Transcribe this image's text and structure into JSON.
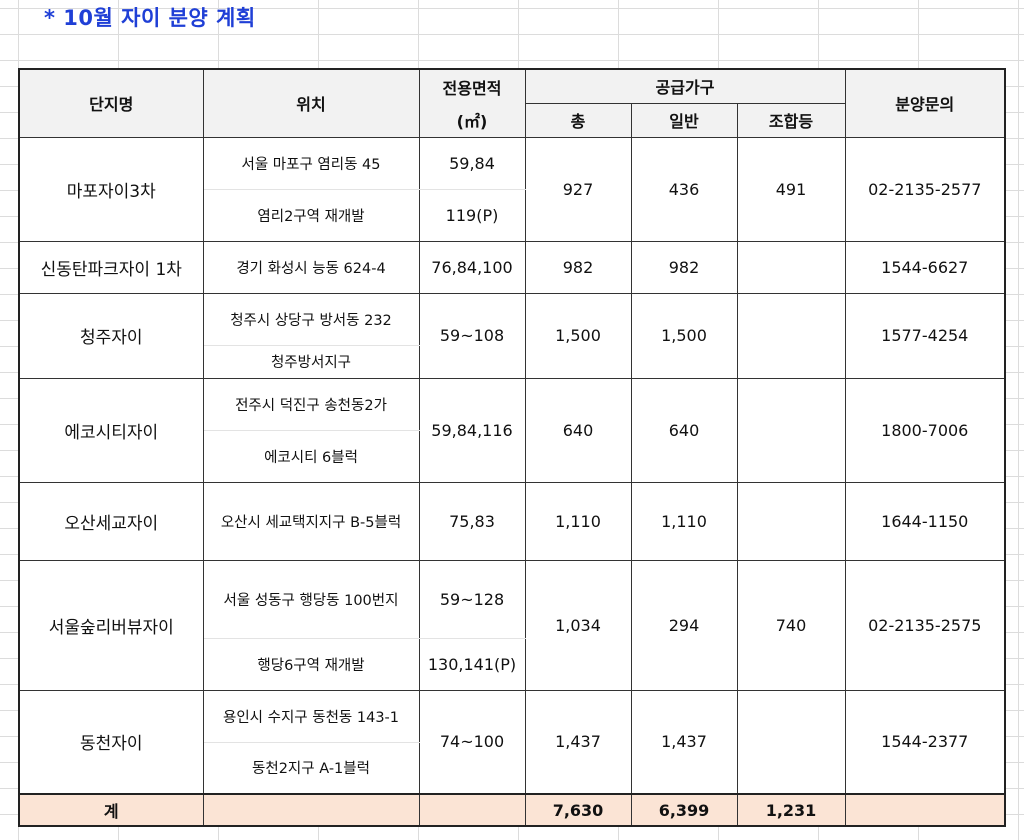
{
  "title": "* 10월 자이 분양 계획",
  "headers": {
    "name": "단지명",
    "location": "위치",
    "area": "전용면적",
    "area_unit": "(㎡)",
    "supply": "공급가구",
    "total": "총",
    "general": "일반",
    "union": "조합등",
    "inquiry": "분양문의"
  },
  "rows": [
    {
      "name": "마포자이3차",
      "location": [
        "서울 마포구 염리동 45",
        "염리2구역 재개발"
      ],
      "area": [
        "59,84",
        "119(P)"
      ],
      "total": "927",
      "general": "436",
      "union": "491",
      "inquiry": "02-2135-2577"
    },
    {
      "name": "신동탄파크자이 1차",
      "location": [
        "경기 화성시 능동 624-4"
      ],
      "area": [
        "76,84,100"
      ],
      "total": "982",
      "general": "982",
      "union": "",
      "inquiry": "1544-6627"
    },
    {
      "name": "청주자이",
      "location": [
        "청주시 상당구 방서동 232",
        "청주방서지구"
      ],
      "area": [
        "59~108"
      ],
      "total": "1,500",
      "general": "1,500",
      "union": "",
      "inquiry": "1577-4254"
    },
    {
      "name": "에코시티자이",
      "location": [
        "전주시 덕진구 송천동2가",
        "에코시티 6블럭"
      ],
      "area": [
        "59,84,116"
      ],
      "total": "640",
      "general": "640",
      "union": "",
      "inquiry": "1800-7006"
    },
    {
      "name": "오산세교자이",
      "location": [
        "오산시 세교택지지구 B-5블럭"
      ],
      "area": [
        "75,83"
      ],
      "total": "1,110",
      "general": "1,110",
      "union": "",
      "inquiry": "1644-1150"
    },
    {
      "name": "서울숲리버뷰자이",
      "location": [
        "서울 성동구 행당동 100번지",
        "행당6구역 재개발"
      ],
      "area": [
        "59~128",
        "130,141(P)"
      ],
      "total": "1,034",
      "general": "294",
      "union": "740",
      "inquiry": "02-2135-2575"
    },
    {
      "name": "동천자이",
      "location": [
        "용인시 수지구 동천동 143-1",
        "동천2지구 A-1블럭"
      ],
      "area": [
        "74~100"
      ],
      "total": "1,437",
      "general": "1,437",
      "union": "",
      "inquiry": "1544-2377"
    }
  ],
  "totals": {
    "label": "계",
    "total": "7,630",
    "general": "6,399",
    "union": "1,231"
  },
  "colors": {
    "title": "#1f3fd6",
    "header_bg": "#f2f2f2",
    "total_bg": "#fbe4d5",
    "gridline": "#dcdcdc"
  }
}
